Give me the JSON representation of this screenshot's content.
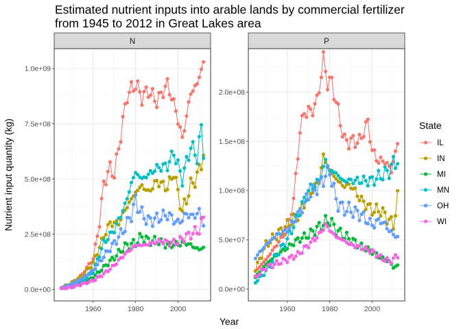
{
  "chart_data": {
    "type": "line",
    "title_lines": [
      "Estimated nutrient inputs into arable lands by commercial fertilizer",
      "from 1945 to 2012 in Great Lakes area"
    ],
    "xlabel": "Year",
    "ylabel": "Nutrient input quantity (kg)",
    "legend_title": "State",
    "legend_position": "right",
    "grid": true,
    "x_start": 1945,
    "x_end": 2012,
    "x_ticks": [
      1960,
      1980,
      2000
    ],
    "x_tick_labels": [
      "1960",
      "1980",
      "2000"
    ],
    "xlim": [
      1941.65,
      2015.35
    ],
    "colors": {
      "IL": "#F8766D",
      "IN": "#B79F00",
      "MI": "#00BA38",
      "MN": "#00BFC4",
      "OH": "#619CFF",
      "WI": "#F564E3"
    },
    "panels": [
      {
        "strip": "N",
        "ylim": [
          -52000000.0,
          1090000000.0
        ],
        "y_ticks": [
          0,
          250000000,
          500000000,
          750000000,
          1000000000
        ],
        "y_tick_labels": [
          "0.0e+00",
          "2.5e+08",
          "5.0e+08",
          "7.5e+08",
          "1.0e+09"
        ],
        "anchors": {
          "IL": [
            [
              1945,
              8000000.0
            ],
            [
              1950,
              25000000.0
            ],
            [
              1955,
              70000000.0
            ],
            [
              1960,
              140000000.0
            ],
            [
              1963,
              300000000.0
            ],
            [
              1965,
              480000000.0
            ],
            [
              1968,
              550000000.0
            ],
            [
              1970,
              520000000.0
            ],
            [
              1973,
              700000000.0
            ],
            [
              1976,
              880000000.0
            ],
            [
              1980,
              930000000.0
            ],
            [
              1983,
              870000000.0
            ],
            [
              1986,
              900000000.0
            ],
            [
              1990,
              850000000.0
            ],
            [
              1995,
              930000000.0
            ],
            [
              1999,
              810000000.0
            ],
            [
              2002,
              680000000.0
            ],
            [
              2006,
              890000000.0
            ],
            [
              2009,
              930000000.0
            ],
            [
              2012,
              1030000000.0
            ]
          ],
          "IN": [
            [
              1945,
              7000000.0
            ],
            [
              1950,
              30000000.0
            ],
            [
              1955,
              60000000.0
            ],
            [
              1960,
              120000000.0
            ],
            [
              1965,
              240000000.0
            ],
            [
              1968,
              300000000.0
            ],
            [
              1972,
              300000000.0
            ],
            [
              1975,
              360000000.0
            ],
            [
              1980,
              440000000.0
            ],
            [
              1983,
              470000000.0
            ],
            [
              1986,
              440000000.0
            ],
            [
              1990,
              490000000.0
            ],
            [
              1995,
              460000000.0
            ],
            [
              1998,
              530000000.0
            ],
            [
              2002,
              350000000.0
            ],
            [
              2006,
              470000000.0
            ],
            [
              2009,
              510000000.0
            ],
            [
              2012,
              610000000.0
            ]
          ],
          "MI": [
            [
              1945,
              5000000.0
            ],
            [
              1950,
              18000000.0
            ],
            [
              1955,
              30000000.0
            ],
            [
              1960,
              55000000.0
            ],
            [
              1965,
              100000000.0
            ],
            [
              1970,
              145000000.0
            ],
            [
              1975,
              195000000.0
            ],
            [
              1980,
              210000000.0
            ],
            [
              1983,
              240000000.0
            ],
            [
              1986,
              220000000.0
            ],
            [
              1990,
              220000000.0
            ],
            [
              1995,
              200000000.0
            ],
            [
              2000,
              205000000.0
            ],
            [
              2004,
              210000000.0
            ],
            [
              2008,
              190000000.0
            ],
            [
              2010,
              180000000.0
            ],
            [
              2012,
              190000000.0
            ]
          ],
          "MN": [
            [
              1945,
              5000000.0
            ],
            [
              1950,
              15000000.0
            ],
            [
              1955,
              40000000.0
            ],
            [
              1960,
              80000000.0
            ],
            [
              1965,
              210000000.0
            ],
            [
              1970,
              270000000.0
            ],
            [
              1975,
              380000000.0
            ],
            [
              1978,
              480000000.0
            ],
            [
              1980,
              530000000.0
            ],
            [
              1983,
              500000000.0
            ],
            [
              1986,
              520000000.0
            ],
            [
              1990,
              550000000.0
            ],
            [
              1995,
              560000000.0
            ],
            [
              1998,
              620000000.0
            ],
            [
              2002,
              500000000.0
            ],
            [
              2006,
              650000000.0
            ],
            [
              2009,
              600000000.0
            ],
            [
              2011,
              730000000.0
            ],
            [
              2012,
              630000000.0
            ]
          ],
          "OH": [
            [
              1945,
              6000000.0
            ],
            [
              1950,
              25000000.0
            ],
            [
              1955,
              50000000.0
            ],
            [
              1960,
              85000000.0
            ],
            [
              1965,
              150000000.0
            ],
            [
              1970,
              210000000.0
            ],
            [
              1975,
              280000000.0
            ],
            [
              1978,
              340000000.0
            ],
            [
              1980,
              400000000.0
            ],
            [
              1983,
              340000000.0
            ],
            [
              1986,
              310000000.0
            ],
            [
              1990,
              320000000.0
            ],
            [
              1995,
              340000000.0
            ],
            [
              2000,
              300000000.0
            ],
            [
              2004,
              340000000.0
            ],
            [
              2008,
              330000000.0
            ],
            [
              2010,
              360000000.0
            ],
            [
              2012,
              290000000.0
            ]
          ],
          "WI": [
            [
              1945,
              3000000.0
            ],
            [
              1950,
              10000000.0
            ],
            [
              1955,
              25000000.0
            ],
            [
              1960,
              40000000.0
            ],
            [
              1965,
              70000000.0
            ],
            [
              1970,
              110000000.0
            ],
            [
              1975,
              160000000.0
            ],
            [
              1980,
              200000000.0
            ],
            [
              1984,
              200000000.0
            ],
            [
              1988,
              210000000.0
            ],
            [
              1992,
              220000000.0
            ],
            [
              1996,
              210000000.0
            ],
            [
              2000,
              215000000.0
            ],
            [
              2004,
              240000000.0
            ],
            [
              2008,
              260000000.0
            ],
            [
              2010,
              270000000.0
            ],
            [
              2012,
              320000000.0
            ]
          ]
        }
      },
      {
        "strip": "P",
        "ylim": [
          -12000000.0,
          244000000.0
        ],
        "y_ticks": [
          0,
          50000000,
          100000000,
          150000000,
          200000000
        ],
        "y_tick_labels": [
          "0.0e+00",
          "5.0e+07",
          "1.0e+08",
          "1.5e+08",
          "2.0e+08"
        ],
        "anchors": {
          "IL": [
            [
              1945,
              18000000.0
            ],
            [
              1950,
              30000000.0
            ],
            [
              1955,
              45000000.0
            ],
            [
              1960,
              60000000.0
            ],
            [
              1963,
              90000000.0
            ],
            [
              1966,
              160000000.0
            ],
            [
              1968,
              180000000.0
            ],
            [
              1971,
              180000000.0
            ],
            [
              1974,
              190000000.0
            ],
            [
              1977,
              233000000.0
            ],
            [
              1979,
              210000000.0
            ],
            [
              1981,
              210000000.0
            ],
            [
              1984,
              180000000.0
            ],
            [
              1987,
              150000000.0
            ],
            [
              1990,
              150000000.0
            ],
            [
              1994,
              150000000.0
            ],
            [
              1998,
              170000000.0
            ],
            [
              2000,
              140000000.0
            ],
            [
              2003,
              130000000.0
            ],
            [
              2006,
              130000000.0
            ],
            [
              2009,
              120000000.0
            ],
            [
              2012,
              148000000.0
            ]
          ],
          "IN": [
            [
              1945,
              20000000.0
            ],
            [
              1950,
              45000000.0
            ],
            [
              1955,
              55000000.0
            ],
            [
              1960,
              65000000.0
            ],
            [
              1965,
              75000000.0
            ],
            [
              1970,
              95000000.0
            ],
            [
              1975,
              110000000.0
            ],
            [
              1977,
              135000000.0
            ],
            [
              1980,
              120000000.0
            ],
            [
              1983,
              112000000.0
            ],
            [
              1986,
              105000000.0
            ],
            [
              1990,
              105000000.0
            ],
            [
              1995,
              90000000.0
            ],
            [
              2000,
              80000000.0
            ],
            [
              2004,
              80000000.0
            ],
            [
              2008,
              70000000.0
            ],
            [
              2010,
              65000000.0
            ],
            [
              2012,
              92000000.0
            ]
          ],
          "MI": [
            [
              1945,
              12000000.0
            ],
            [
              1950,
              25000000.0
            ],
            [
              1955,
              35000000.0
            ],
            [
              1960,
              42000000.0
            ],
            [
              1965,
              50000000.0
            ],
            [
              1970,
              55000000.0
            ],
            [
              1975,
              63000000.0
            ],
            [
              1978,
              68000000.0
            ],
            [
              1980,
              70000000.0
            ],
            [
              1983,
              60000000.0
            ],
            [
              1986,
              55000000.0
            ],
            [
              1990,
              50000000.0
            ],
            [
              1995,
              43000000.0
            ],
            [
              2000,
              38000000.0
            ],
            [
              2004,
              32000000.0
            ],
            [
              2008,
              28000000.0
            ],
            [
              2010,
              22000000.0
            ],
            [
              2012,
              24000000.0
            ]
          ],
          "MN": [
            [
              1945,
              7000000.0
            ],
            [
              1950,
              18000000.0
            ],
            [
              1955,
              35000000.0
            ],
            [
              1960,
              50000000.0
            ],
            [
              1965,
              75000000.0
            ],
            [
              1970,
              100000000.0
            ],
            [
              1975,
              110000000.0
            ],
            [
              1978,
              130000000.0
            ],
            [
              1980,
              120000000.0
            ],
            [
              1983,
              118000000.0
            ],
            [
              1986,
              110000000.0
            ],
            [
              1990,
              110000000.0
            ],
            [
              1995,
              110000000.0
            ],
            [
              2000,
              110000000.0
            ],
            [
              2004,
              115000000.0
            ],
            [
              2008,
              120000000.0
            ],
            [
              2010,
              128000000.0
            ],
            [
              2012,
              130000000.0
            ]
          ],
          "OH": [
            [
              1945,
              32000000.0
            ],
            [
              1950,
              45000000.0
            ],
            [
              1955,
              55000000.0
            ],
            [
              1960,
              60000000.0
            ],
            [
              1965,
              75000000.0
            ],
            [
              1970,
              95000000.0
            ],
            [
              1975,
              105000000.0
            ],
            [
              1978,
              115000000.0
            ],
            [
              1980,
              120000000.0
            ],
            [
              1983,
              90000000.0
            ],
            [
              1986,
              82000000.0
            ],
            [
              1990,
              80000000.0
            ],
            [
              1995,
              75000000.0
            ],
            [
              2000,
              65000000.0
            ],
            [
              2004,
              70000000.0
            ],
            [
              2008,
              60000000.0
            ],
            [
              2010,
              55000000.0
            ],
            [
              2012,
              53000000.0
            ]
          ],
          "WI": [
            [
              1945,
              12000000.0
            ],
            [
              1950,
              22000000.0
            ],
            [
              1955,
              26000000.0
            ],
            [
              1960,
              30000000.0
            ],
            [
              1965,
              35000000.0
            ],
            [
              1970,
              45000000.0
            ],
            [
              1975,
              55000000.0
            ],
            [
              1978,
              65000000.0
            ],
            [
              1980,
              60000000.0
            ],
            [
              1983,
              53000000.0
            ],
            [
              1986,
              50000000.0
            ],
            [
              1990,
              45000000.0
            ],
            [
              1995,
              42000000.0
            ],
            [
              2000,
              38000000.0
            ],
            [
              2004,
              32000000.0
            ],
            [
              2008,
              28000000.0
            ],
            [
              2010,
              30000000.0
            ],
            [
              2012,
              35000000.0
            ]
          ]
        }
      }
    ]
  }
}
